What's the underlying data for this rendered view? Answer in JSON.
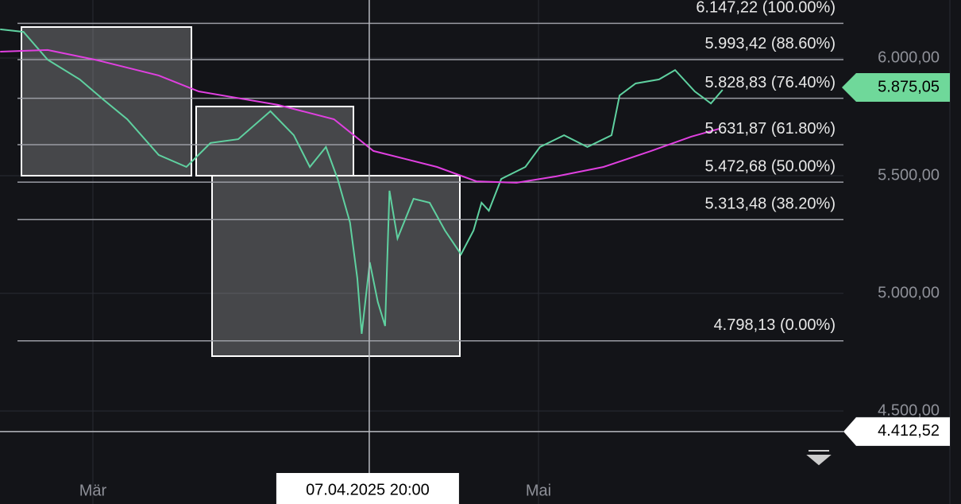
{
  "chart_data": {
    "type": "line",
    "x": [
      47.3,
      50.5,
      53.8,
      58.2,
      61.4,
      64.7,
      69.0,
      72.8,
      76.1,
      79.9,
      84.3,
      87.5,
      89.7,
      91.9,
      93.5,
      95.2,
      96.2,
      96.8,
      97.9,
      99.0,
      100.0,
      100.6,
      101.7,
      103.9,
      106.1,
      108.2,
      110.4,
      112.1,
      113.2,
      114.2,
      115.9,
      119.2,
      121.2,
      124.5,
      127.7,
      131.0,
      132.1,
      134.3,
      137.5,
      139.7,
      142.4,
      144.6,
      146.2
    ],
    "series": [
      {
        "color": "#5fd1a0",
        "values": [
          6122,
          6111,
          5993,
          5909,
          5824,
          5740,
          5588,
          5537,
          5639,
          5655,
          5774,
          5672,
          5537,
          5622,
          5486,
          5301,
          5064,
          4828,
          5132,
          4963,
          4861,
          5436,
          5233,
          5402,
          5385,
          5267,
          5166,
          5267,
          5385,
          5351,
          5486,
          5537,
          5622,
          5672,
          5622,
          5672,
          5841,
          5892,
          5909,
          5949,
          5858,
          5807,
          5865
        ]
      },
      {
        "color": "#e040e0",
        "x": [
          47.3,
          53.8,
          60.3,
          69.0,
          74.5,
          85.3,
          93.0,
          98.4,
          107.1,
          112.5,
          118.0,
          123.4,
          129.9,
          136.4,
          141.9,
          145.7
        ],
        "values": [
          6027,
          6034,
          5993,
          5926,
          5858,
          5801,
          5740,
          5605,
          5537,
          5476,
          5470,
          5497,
          5537,
          5605,
          5666,
          5699
        ]
      }
    ],
    "xlim": [
      47.28,
      162.75
    ],
    "xticks": [
      {
        "value": 60,
        "label": "Mär"
      },
      {
        "value": 121,
        "label": "Mai"
      }
    ],
    "ylim": [
      4104.7,
      6246.6
    ],
    "yticks": [
      {
        "value": 4500,
        "label": "4.500,00"
      },
      {
        "value": 5000,
        "label": "5.000,00"
      },
      {
        "value": 5500,
        "label": "5.500,00"
      },
      {
        "value": 6000,
        "label": "6.000,00"
      }
    ],
    "grid": true,
    "annotations": [
      {
        "value": 6147.22,
        "label": "6.147,22 (100.00%)"
      },
      {
        "value": 5993.42,
        "label": "5.993,42 (88.60%)"
      },
      {
        "value": 5828.83,
        "label": "5.828,83 (76.40%)"
      },
      {
        "value": 5631.87,
        "label": "5.631,87 (61.80%)"
      },
      {
        "value": 5472.68,
        "label": "5.472,68 (50.00%)"
      },
      {
        "value": 5313.48,
        "label": "5.313,48 (38.20%)"
      },
      {
        "value": 4798.13,
        "label": "4.798,13 (0.00%)"
      }
    ],
    "last_price": {
      "value": 5875.05,
      "label": "5.875,05"
    },
    "crosshair": {
      "x": {
        "value": 97.83,
        "label": "07.04.2025 20:00"
      },
      "y": {
        "value": 4412.52,
        "label": "4.412,52"
      }
    }
  }
}
